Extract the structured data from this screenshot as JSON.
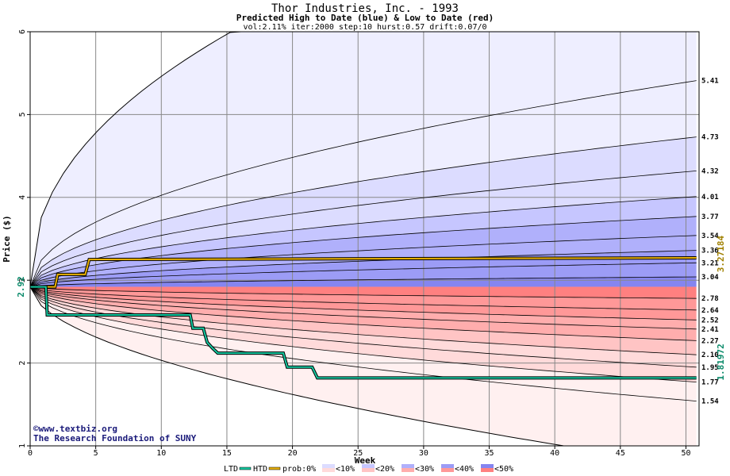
{
  "chart_data": {
    "type": "area",
    "title": "Thor Industries, Inc. - 1993",
    "subtitle": "Predicted High to Date (blue) &  Low to Date (red)",
    "params": "vol:2.11% iter:2000 step:10 hurst:0.57 drift:0.07/0",
    "xlabel": "Week",
    "ylabel": "Price ($)",
    "xlim": [
      0,
      51
    ],
    "ylim": [
      1,
      6
    ],
    "x_ticks": [
      "0",
      "5",
      "10",
      "15",
      "20",
      "25",
      "30",
      "35",
      "40",
      "45",
      "50"
    ],
    "y_ticks": [
      "1",
      "2",
      "3",
      "4",
      "5",
      "6"
    ],
    "start_price": "2.92",
    "start_value": 2.92,
    "htd_end_label": "3.27184",
    "ltd_end_label": "1.81972",
    "percentile_end_values": [
      5.41,
      4.73,
      4.32,
      4.01,
      3.77,
      3.54,
      3.36,
      3.21,
      3.04,
      2.78,
      2.64,
      2.52,
      2.41,
      2.27,
      2.1,
      1.95,
      1.77,
      1.54
    ],
    "percentile_end_labels": [
      "5.41",
      "4.73",
      "4.32",
      "4.01",
      "3.77",
      "3.54",
      "3.36",
      "3.21",
      "3.04",
      "2.78",
      "2.64",
      "2.52",
      "2.41",
      "2.27",
      "2.10",
      "1.95",
      "1.77",
      "1.54"
    ],
    "outer_high_end": 6.0,
    "outer_low_end": 1.0,
    "htd_series": [
      [
        0,
        2.92
      ],
      [
        1.9,
        2.92
      ],
      [
        2.1,
        3.07
      ],
      [
        4.2,
        3.07
      ],
      [
        4.5,
        3.25
      ],
      [
        50.8,
        3.27
      ]
    ],
    "ltd_series": [
      [
        0,
        2.92
      ],
      [
        1.2,
        2.92
      ],
      [
        1.3,
        2.58
      ],
      [
        12.2,
        2.58
      ],
      [
        12.4,
        2.42
      ],
      [
        13.2,
        2.42
      ],
      [
        13.5,
        2.25
      ],
      [
        13.9,
        2.18
      ],
      [
        14.3,
        2.12
      ],
      [
        19.3,
        2.12
      ],
      [
        19.6,
        1.95
      ],
      [
        21.5,
        1.95
      ],
      [
        21.9,
        1.82
      ],
      [
        50.8,
        1.82
      ]
    ],
    "legend": {
      "ltd": "LTD",
      "htd": "HTD",
      "prob_label": "prob:0%",
      "items": [
        "<10%",
        "<20%",
        "<30%",
        "<40%",
        "<50%"
      ]
    },
    "colors": {
      "ltd": "#14c8a0",
      "htd": "#e8b000",
      "blue_bands": [
        "#eeeeff",
        "#dcdcff",
        "#c6c6ff",
        "#b0b0fb",
        "#9c9cf6",
        "#8585f0"
      ],
      "red_bands": [
        "#fff0f0",
        "#ffdada",
        "#ffc4c4",
        "#ffadad",
        "#ff9898",
        "#ff8080"
      ]
    }
  },
  "credit": {
    "line1": "©www.textbiz.org",
    "line2": "The Research Foundation of SUNY"
  }
}
